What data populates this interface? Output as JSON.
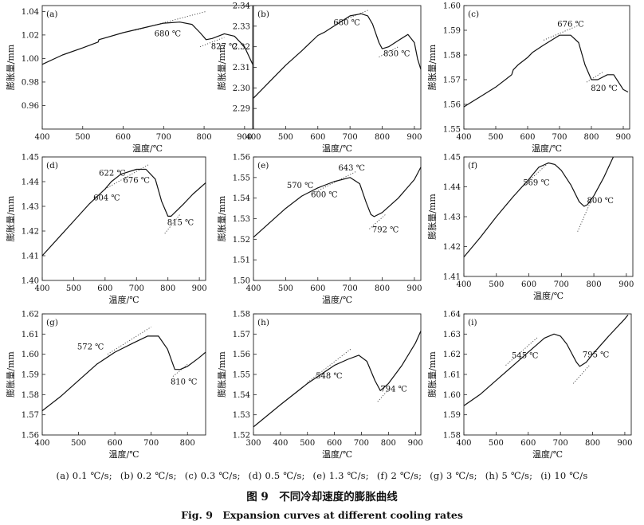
{
  "figure": {
    "subcaptions": [
      "(a) 0.1 ℃/s;",
      "(b) 0.2 ℃/s;",
      "(c) 0.3 ℃/s;",
      "(d) 0.5 ℃/s;",
      "(e) 1.3 ℃/s;",
      "(f) 2 ℃/s;",
      "(g) 3 ℃/s;",
      "(h) 5 ℃/s;",
      "(i) 10 ℃/s"
    ],
    "title_zh": "图 9　不同冷却速度的膨胀曲线",
    "title_en": "Fig. 9　Expansion curves at different cooling rates"
  },
  "chart_data": [
    {
      "panel": "(a)",
      "type": "line",
      "xlabel": "温度/℃",
      "ylabel": "膨胀量/mm",
      "xlim": [
        400,
        920
      ],
      "ylim": [
        0.94,
        1.045
      ],
      "xticks": [
        400,
        500,
        600,
        700,
        800,
        900
      ],
      "yticks": [
        0.96,
        0.98,
        1.0,
        1.02,
        1.04
      ],
      "series": [
        {
          "x": [
            400,
            450,
            500,
            538,
            540,
            600,
            650,
            700,
            740,
            770,
            790,
            805,
            820,
            850,
            875,
            900,
            920
          ],
          "y": [
            0.995,
            1.003,
            1.009,
            1.014,
            1.016,
            1.022,
            1.026,
            1.03,
            1.031,
            1.029,
            1.022,
            1.016,
            1.017,
            1.021,
            1.019,
            1.01,
            0.995
          ]
        }
      ],
      "annotations": [
        {
          "text": "680 ℃",
          "x": 710,
          "y": 1.019
        },
        {
          "text": "827 ℃",
          "x": 850,
          "y": 1.008
        }
      ],
      "tangents": [
        {
          "x": [
            630,
            805
          ],
          "y": [
            1.024,
            1.04
          ]
        },
        {
          "x": [
            790,
            850
          ],
          "y": [
            1.01,
            1.018
          ]
        }
      ]
    },
    {
      "panel": "(b)",
      "type": "line",
      "xlabel": "温度/℃",
      "ylabel": "膨胀量/mm",
      "xlim": [
        400,
        920
      ],
      "ylim": [
        2.28,
        2.34
      ],
      "xticks": [
        400,
        500,
        600,
        700,
        800,
        900
      ],
      "yticks": [
        2.29,
        2.3,
        2.31,
        2.32,
        2.33,
        2.34
      ],
      "series": [
        {
          "x": [
            400,
            450,
            500,
            550,
            600,
            620,
            640,
            660,
            700,
            735,
            755,
            770,
            790,
            800,
            820,
            850,
            880,
            900,
            910,
            920
          ],
          "y": [
            2.295,
            2.303,
            2.311,
            2.318,
            2.3255,
            2.327,
            2.329,
            2.331,
            2.335,
            2.336,
            2.335,
            2.331,
            2.322,
            2.319,
            2.32,
            2.323,
            2.326,
            2.322,
            2.314,
            2.309
          ]
        }
      ],
      "annotations": [
        {
          "text": "680 ℃",
          "x": 690,
          "y": 2.3305
        },
        {
          "text": "830 ℃",
          "x": 845,
          "y": 2.3155
        }
      ],
      "tangents": [
        {
          "x": [
            650,
            760
          ],
          "y": [
            2.331,
            2.338
          ]
        },
        {
          "x": [
            790,
            850
          ],
          "y": [
            2.315,
            2.32
          ]
        }
      ]
    },
    {
      "panel": "(c)",
      "type": "line",
      "xlabel": "温度/℃",
      "ylabel": "膨胀量/mm",
      "xlim": [
        400,
        920
      ],
      "ylim": [
        1.55,
        1.6
      ],
      "xticks": [
        400,
        500,
        600,
        700,
        800,
        900
      ],
      "yticks": [
        1.55,
        1.56,
        1.57,
        1.58,
        1.59,
        1.6
      ],
      "series": [
        {
          "x": [
            400,
            450,
            500,
            550,
            555,
            570,
            600,
            615,
            650,
            700,
            735,
            760,
            780,
            800,
            820,
            850,
            870,
            900,
            915
          ],
          "y": [
            1.559,
            1.563,
            1.567,
            1.572,
            1.574,
            1.576,
            1.579,
            1.581,
            1.584,
            1.588,
            1.588,
            1.585,
            1.576,
            1.57,
            1.57,
            1.572,
            1.572,
            1.566,
            1.565
          ]
        }
      ],
      "annotations": [
        {
          "text": "676 ℃",
          "x": 735,
          "y": 1.5915
        },
        {
          "text": "820 ℃",
          "x": 840,
          "y": 1.5655
        }
      ],
      "tangents": [
        {
          "x": [
            650,
            760
          ],
          "y": [
            1.586,
            1.592
          ]
        },
        {
          "x": [
            785,
            835
          ],
          "y": [
            1.569,
            1.573
          ]
        }
      ]
    },
    {
      "panel": "(d)",
      "type": "line",
      "xlabel": "温度/℃",
      "ylabel": "膨胀量/mm",
      "xlim": [
        400,
        920
      ],
      "ylim": [
        1.4,
        1.45
      ],
      "xticks": [
        400,
        500,
        600,
        700,
        800,
        900
      ],
      "yticks": [
        1.4,
        1.41,
        1.42,
        1.43,
        1.44,
        1.45
      ],
      "series": [
        {
          "x": [
            400,
            450,
            500,
            550,
            600,
            620,
            650,
            700,
            730,
            760,
            780,
            800,
            810,
            850,
            880,
            920
          ],
          "y": [
            1.41,
            1.417,
            1.424,
            1.431,
            1.437,
            1.44,
            1.443,
            1.445,
            1.445,
            1.441,
            1.432,
            1.426,
            1.426,
            1.431,
            1.435,
            1.4395
          ]
        }
      ],
      "annotations": [
        {
          "text": "622 ℃",
          "x": 623,
          "y": 1.4425
        },
        {
          "text": "676 ℃",
          "x": 700,
          "y": 1.4395
        },
        {
          "text": "604 ℃",
          "x": 605,
          "y": 1.4325
        },
        {
          "text": "815 ℃",
          "x": 840,
          "y": 1.4225
        }
      ],
      "tangents": [
        {
          "x": [
            600,
            740
          ],
          "y": [
            1.437,
            1.447
          ]
        },
        {
          "x": [
            790,
            840
          ],
          "y": [
            1.419,
            1.427
          ]
        }
      ]
    },
    {
      "panel": "(e)",
      "type": "line",
      "xlabel": "温度/℃",
      "ylabel": "膨胀量/mm",
      "xlim": [
        400,
        920
      ],
      "ylim": [
        1.5,
        1.56
      ],
      "xticks": [
        400,
        500,
        600,
        700,
        800,
        900
      ],
      "yticks": [
        1.5,
        1.51,
        1.52,
        1.53,
        1.54,
        1.55,
        1.56
      ],
      "series": [
        {
          "x": [
            400,
            450,
            500,
            550,
            600,
            650,
            700,
            730,
            750,
            765,
            775,
            800,
            850,
            900,
            920
          ],
          "y": [
            1.521,
            1.528,
            1.535,
            1.541,
            1.545,
            1.548,
            1.55,
            1.547,
            1.538,
            1.532,
            1.531,
            1.533,
            1.54,
            1.549,
            1.555
          ]
        }
      ],
      "annotations": [
        {
          "text": "570 ℃",
          "x": 545,
          "y": 1.545
        },
        {
          "text": "643 ℃",
          "x": 705,
          "y": 1.5535
        },
        {
          "text": "600 ℃",
          "x": 620,
          "y": 1.5405
        },
        {
          "text": "792 ℃",
          "x": 810,
          "y": 1.5235
        }
      ],
      "tangents": [
        {
          "x": [
            580,
            720
          ],
          "y": [
            1.542,
            1.553
          ]
        },
        {
          "x": [
            760,
            810
          ],
          "y": [
            1.525,
            1.532
          ]
        }
      ]
    },
    {
      "panel": "(f)",
      "type": "line",
      "xlabel": "温度/℃",
      "ylabel": "膨胀量/mm",
      "xlim": [
        400,
        920
      ],
      "ylim": [
        1.41,
        1.45
      ],
      "xticks": [
        400,
        500,
        600,
        700,
        800,
        900
      ],
      "yticks": [
        1.41,
        1.42,
        1.43,
        1.44,
        1.45
      ],
      "series": [
        {
          "x": [
            400,
            450,
            500,
            550,
            600,
            630,
            660,
            680,
            700,
            730,
            755,
            770,
            780,
            800,
            830,
            860
          ],
          "y": [
            1.4165,
            1.423,
            1.43,
            1.4365,
            1.4425,
            1.4465,
            1.448,
            1.4475,
            1.4455,
            1.4405,
            1.435,
            1.4335,
            1.434,
            1.437,
            1.443,
            1.45
          ]
        }
      ],
      "annotations": [
        {
          "text": "569 ℃",
          "x": 623,
          "y": 1.4405
        },
        {
          "text": "800 ℃",
          "x": 820,
          "y": 1.4345
        }
      ],
      "tangents": [
        {
          "x": [
            570,
            660
          ],
          "y": [
            1.439,
            1.448
          ]
        },
        {
          "x": [
            750,
            790
          ],
          "y": [
            1.425,
            1.435
          ]
        }
      ]
    },
    {
      "panel": "(g)",
      "type": "line",
      "xlabel": "温度/℃",
      "ylabel": "膨胀量/mm",
      "xlim": [
        400,
        850
      ],
      "ylim": [
        1.56,
        1.62
      ],
      "xticks": [
        400,
        500,
        600,
        700,
        800
      ],
      "yticks": [
        1.56,
        1.57,
        1.58,
        1.59,
        1.6,
        1.61,
        1.62
      ],
      "series": [
        {
          "x": [
            400,
            450,
            500,
            550,
            600,
            650,
            690,
            720,
            745,
            765,
            780,
            800,
            830,
            850
          ],
          "y": [
            1.572,
            1.579,
            1.587,
            1.595,
            1.601,
            1.6055,
            1.609,
            1.609,
            1.6025,
            1.5925,
            1.5925,
            1.594,
            1.598,
            1.601
          ]
        }
      ],
      "annotations": [
        {
          "text": "572 ℃",
          "x": 533,
          "y": 1.6025
        },
        {
          "text": "810 ℃",
          "x": 790,
          "y": 1.585
        }
      ],
      "tangents": [
        {
          "x": [
            580,
            700
          ],
          "y": [
            1.6,
            1.6135
          ]
        },
        {
          "x": [
            760,
            800
          ],
          "y": [
            1.589,
            1.595
          ]
        }
      ]
    },
    {
      "panel": "(h)",
      "type": "line",
      "xlabel": "温度/℃",
      "ylabel": "膨胀量/mm",
      "xlim": [
        300,
        920
      ],
      "ylim": [
        1.52,
        1.58
      ],
      "xticks": [
        300,
        400,
        500,
        600,
        700,
        800,
        900
      ],
      "yticks": [
        1.52,
        1.53,
        1.54,
        1.55,
        1.56,
        1.57,
        1.58
      ],
      "series": [
        {
          "x": [
            300,
            400,
            500,
            600,
            650,
            690,
            720,
            750,
            770,
            800,
            850,
            900,
            920
          ],
          "y": [
            1.524,
            1.535,
            1.5455,
            1.5545,
            1.5575,
            1.5595,
            1.5565,
            1.547,
            1.542,
            1.5455,
            1.5545,
            1.5655,
            1.5715
          ]
        }
      ],
      "annotations": [
        {
          "text": "548 ℃",
          "x": 580,
          "y": 1.548
        },
        {
          "text": "794 ℃",
          "x": 820,
          "y": 1.5415
        }
      ],
      "tangents": [
        {
          "x": [
            500,
            660
          ],
          "y": [
            1.546,
            1.5625
          ]
        },
        {
          "x": [
            760,
            800
          ],
          "y": [
            1.5365,
            1.5425
          ]
        }
      ]
    },
    {
      "panel": "(i)",
      "type": "line",
      "xlabel": "温度/℃",
      "ylabel": "膨胀量/mm",
      "xlim": [
        400,
        920
      ],
      "ylim": [
        1.58,
        1.64
      ],
      "xticks": [
        400,
        500,
        600,
        700,
        800,
        900
      ],
      "yticks": [
        1.58,
        1.59,
        1.6,
        1.61,
        1.62,
        1.63,
        1.64
      ],
      "series": [
        {
          "x": [
            400,
            450,
            500,
            550,
            600,
            650,
            680,
            700,
            720,
            750,
            760,
            780,
            800,
            850,
            900,
            910
          ],
          "y": [
            1.5945,
            1.6,
            1.607,
            1.614,
            1.621,
            1.628,
            1.63,
            1.629,
            1.625,
            1.616,
            1.614,
            1.616,
            1.62,
            1.629,
            1.6375,
            1.6395
          ]
        }
      ],
      "annotations": [
        {
          "text": "545 ℃",
          "x": 590,
          "y": 1.618
        },
        {
          "text": "795 ℃",
          "x": 810,
          "y": 1.6185
        }
      ],
      "tangents": [
        {
          "x": [
            530,
            630
          ],
          "y": [
            1.6145,
            1.6285
          ]
        },
        {
          "x": [
            740,
            790
          ],
          "y": [
            1.6055,
            1.6145
          ]
        }
      ]
    }
  ]
}
